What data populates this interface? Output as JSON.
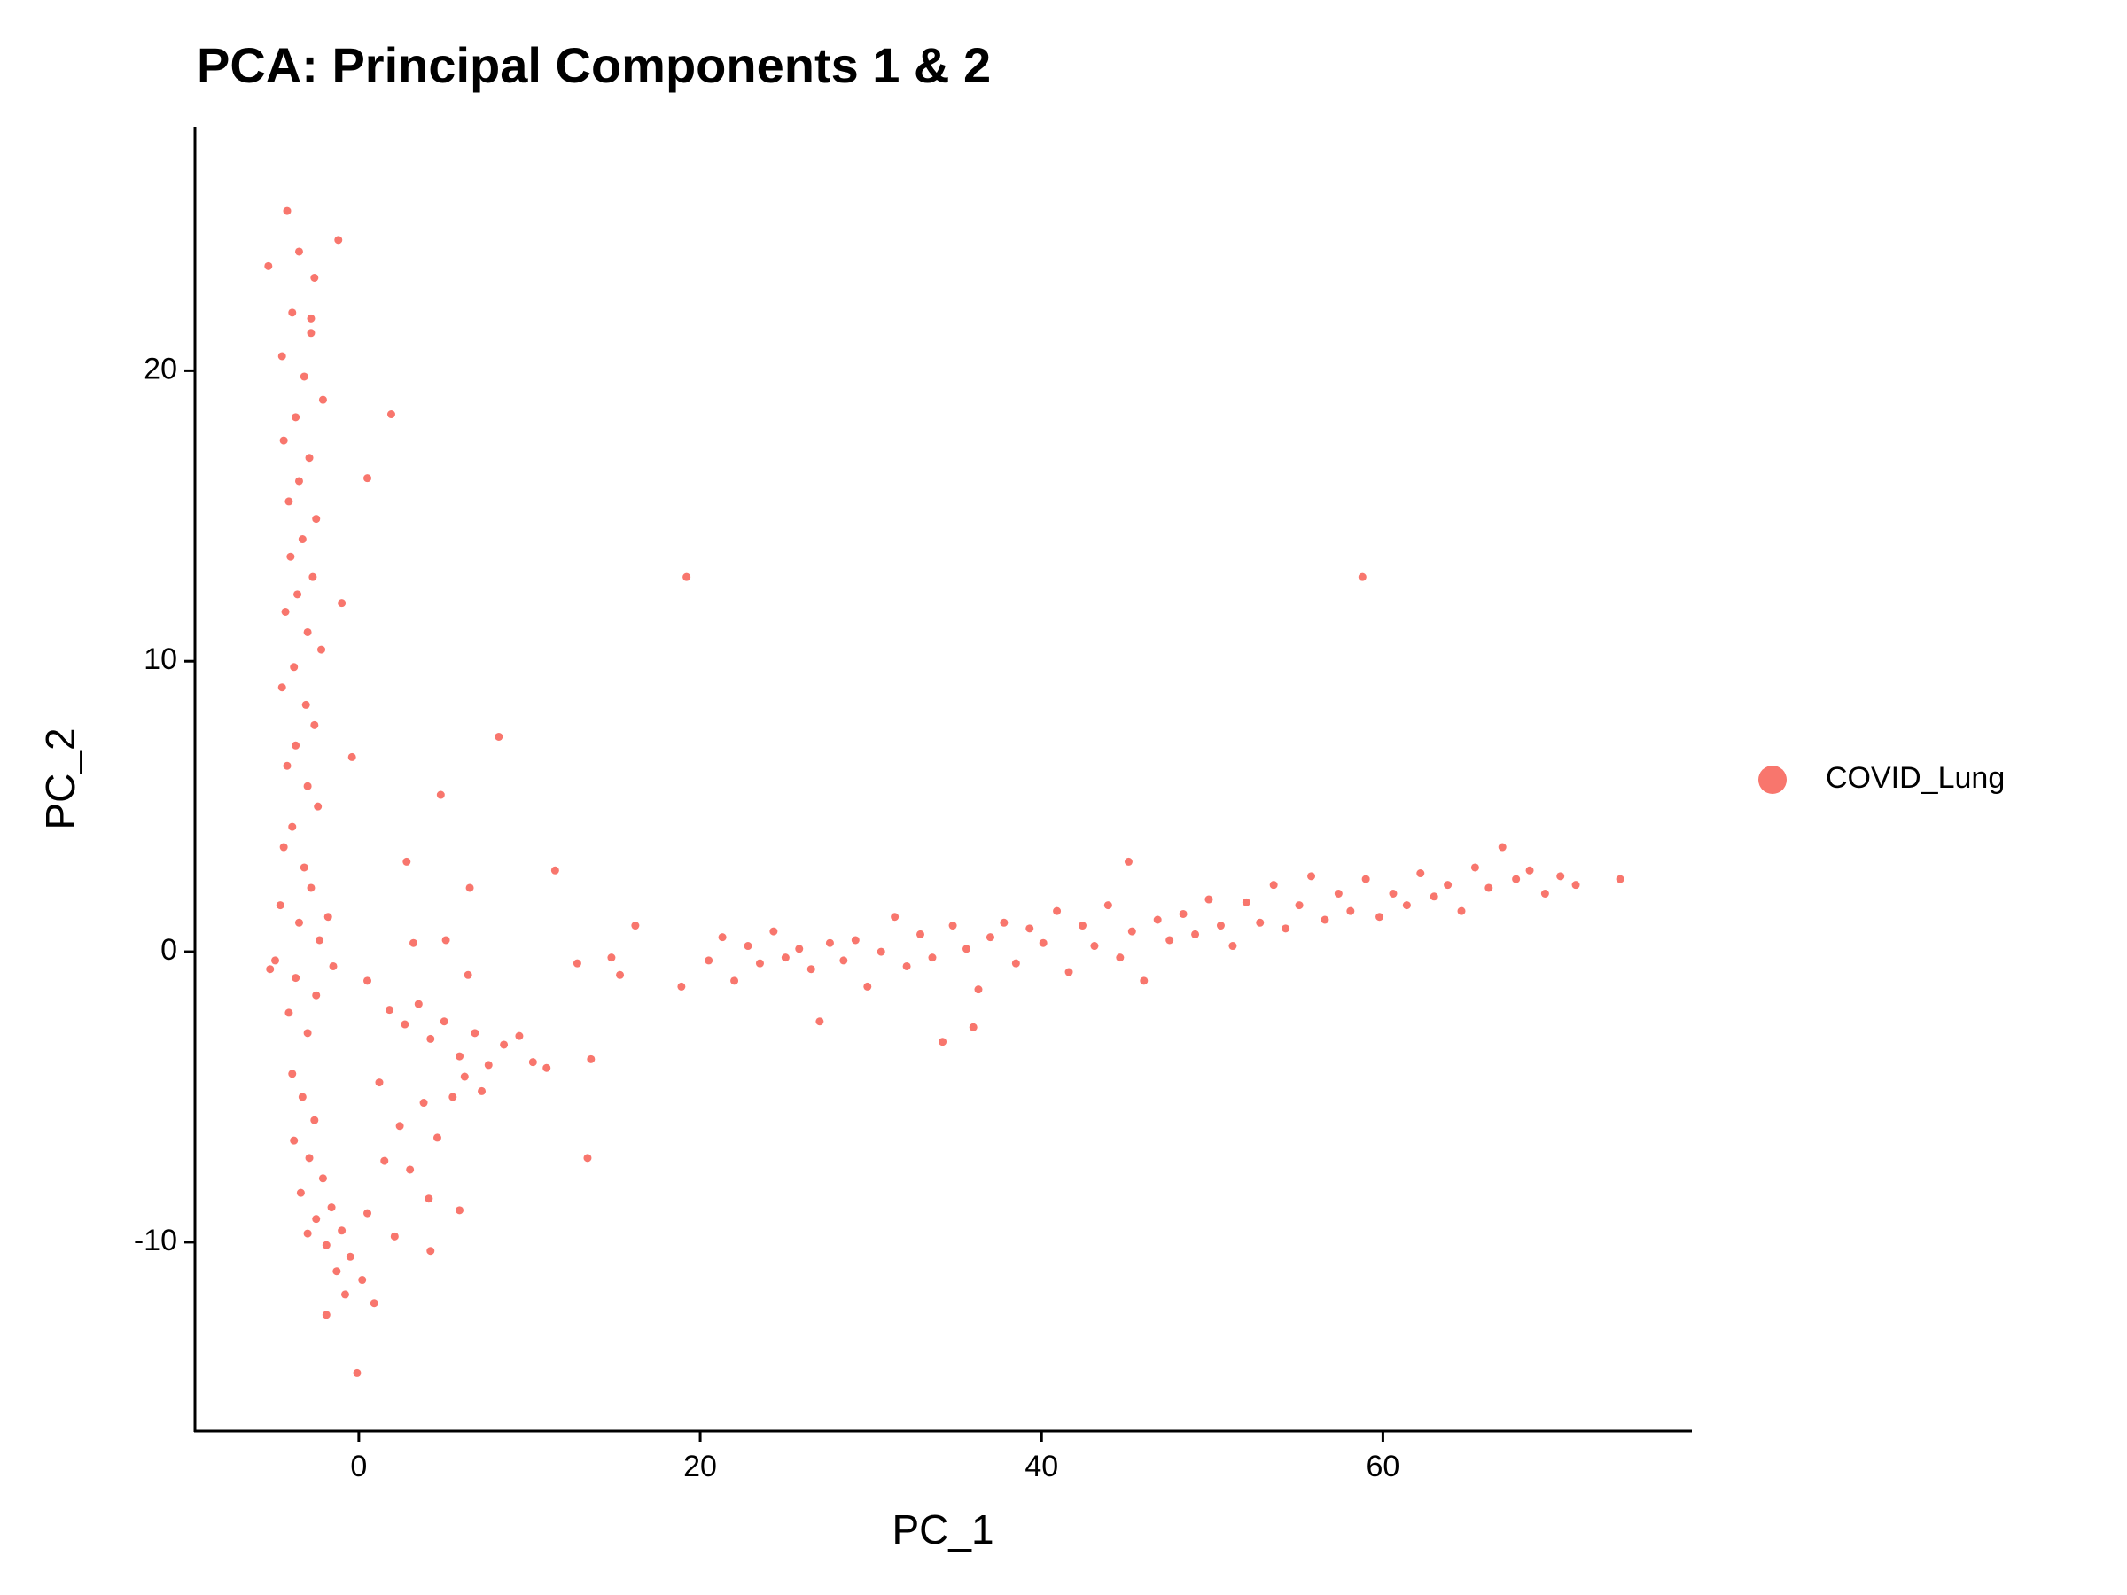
{
  "chart_data": {
    "type": "scatter",
    "title": "PCA: Principal Components 1 & 2",
    "x_label": "PC_1",
    "y_label": "PC_2",
    "xlim": [
      -9.6,
      78.1
    ],
    "ylim": [
      -16.5,
      28.4
    ],
    "xticks": [
      0,
      20,
      40,
      60
    ],
    "yticks": [
      -10,
      0,
      10,
      20
    ],
    "grid": false,
    "legend": "right",
    "series": [
      {
        "name": "COVID_Lung",
        "color": "#F8766D",
        "x": [
          -4.2,
          -3.5,
          -2.6,
          -3.9,
          -2.8,
          -4.5,
          -3.2,
          -2.1,
          -3.7,
          -4.4,
          -2.9,
          -3.5,
          -4.1,
          -2.5,
          -3.3,
          -4.0,
          -2.7,
          -3.6,
          -4.3,
          -3.0,
          -2.2,
          -3.8,
          -4.5,
          -3.1,
          -2.6,
          -3.7,
          -4.2,
          -3.0,
          -2.4,
          -3.9,
          -4.4,
          -3.2,
          -2.8,
          -4.6,
          -3.5,
          -2.3,
          -4.9,
          -3.7,
          -2.5,
          -4.1,
          -3.0,
          -1.5,
          -5.2,
          -1.8,
          -3.9,
          -3.3,
          -2.6,
          -3.8,
          -2.9,
          -2.1,
          -3.4,
          -1.6,
          -2.5,
          -1.0,
          -1.9,
          -0.5,
          -1.3,
          0.2,
          -0.8,
          0.9,
          -1.9,
          -0.1,
          -3.0,
          0.5,
          -2.8,
          -1.2,
          -5.3,
          1.9,
          0.5,
          -1.0,
          -0.4,
          8.2,
          4.8,
          6.5,
          2.8,
          11.5,
          0.5,
          1.8,
          2.7,
          3.5,
          4.2,
          5.0,
          5.9,
          6.8,
          7.6,
          8.5,
          9.4,
          10.2,
          11.0,
          1.2,
          2.4,
          3.8,
          4.6,
          5.5,
          6.2,
          7.2,
          3.0,
          4.1,
          5.9,
          4.2,
          2.1,
          1.5,
          3.2,
          5.1,
          6.4,
          13.6,
          13.4,
          12.8,
          14.8,
          15.3,
          16.2,
          18.9,
          19.2,
          20.5,
          21.3,
          22.0,
          22.8,
          23.5,
          24.3,
          25.0,
          25.8,
          26.5,
          27.0,
          27.6,
          28.4,
          29.1,
          29.8,
          30.6,
          31.4,
          32.1,
          32.9,
          33.6,
          34.2,
          34.8,
          35.6,
          36.3,
          36.0,
          37.0,
          37.8,
          38.5,
          39.3,
          40.1,
          40.9,
          41.6,
          42.4,
          43.1,
          43.9,
          44.6,
          45.3,
          45.1,
          46.0,
          46.8,
          47.5,
          48.3,
          49.0,
          49.8,
          50.5,
          51.2,
          52.0,
          52.8,
          53.6,
          54.3,
          55.1,
          55.8,
          56.6,
          57.4,
          58.1,
          58.8,
          59.0,
          59.8,
          60.6,
          61.4,
          62.2,
          63.0,
          63.8,
          64.6,
          65.4,
          66.2,
          67.0,
          67.8,
          68.6,
          69.5,
          70.4,
          71.3,
          73.9
        ],
        "values": [
          25.5,
          24.1,
          23.2,
          22.0,
          21.3,
          20.5,
          19.8,
          19.0,
          18.4,
          17.6,
          17.0,
          16.2,
          15.5,
          14.9,
          14.2,
          13.6,
          12.9,
          12.3,
          11.7,
          11.0,
          10.4,
          9.8,
          9.1,
          8.5,
          7.8,
          7.1,
          6.4,
          5.7,
          5.0,
          4.3,
          3.6,
          2.9,
          2.2,
          1.6,
          1.0,
          0.4,
          -0.3,
          -0.9,
          -1.5,
          -2.1,
          -2.8,
          -0.5,
          -0.6,
          1.2,
          -4.2,
          -5.0,
          -5.8,
          -6.5,
          -7.1,
          -7.8,
          -8.3,
          -8.8,
          -9.2,
          -9.6,
          -10.1,
          -10.5,
          -11.0,
          -11.3,
          -11.8,
          -12.1,
          -12.5,
          -14.5,
          -9.7,
          -9.0,
          21.8,
          24.5,
          23.6,
          18.5,
          16.3,
          12.0,
          6.7,
          7.4,
          5.4,
          2.2,
          3.1,
          2.8,
          -1.0,
          -2.0,
          -2.5,
          -1.8,
          -3.0,
          -2.4,
          -3.6,
          -2.8,
          -3.9,
          -3.2,
          -2.9,
          -3.8,
          -4.0,
          -4.5,
          -6.0,
          -5.2,
          -6.4,
          -5.0,
          -4.3,
          -4.8,
          -7.5,
          -8.5,
          -8.9,
          -10.3,
          -9.8,
          -7.2,
          0.3,
          0.4,
          -0.8,
          -3.7,
          -7.1,
          -0.4,
          -0.2,
          -0.8,
          0.9,
          -1.2,
          12.9,
          -0.3,
          0.5,
          -1.0,
          0.2,
          -0.4,
          0.7,
          -0.2,
          0.1,
          -0.6,
          -2.4,
          0.3,
          -0.3,
          0.4,
          -1.2,
          0.0,
          1.2,
          -0.5,
          0.6,
          -0.2,
          -3.1,
          0.9,
          0.1,
          -1.3,
          -2.6,
          0.5,
          1.0,
          -0.4,
          0.8,
          0.3,
          1.4,
          -0.7,
          0.9,
          0.2,
          1.6,
          -0.2,
          0.7,
          3.1,
          -1.0,
          1.1,
          0.4,
          1.3,
          0.6,
          1.8,
          0.9,
          0.2,
          1.7,
          1.0,
          2.3,
          0.8,
          1.6,
          2.6,
          1.1,
          2.0,
          1.4,
          12.9,
          2.5,
          1.2,
          2.0,
          1.6,
          2.7,
          1.9,
          2.3,
          1.4,
          2.9,
          2.2,
          3.6,
          2.5,
          2.8,
          2.0,
          2.6,
          2.3,
          2.5
        ]
      }
    ]
  }
}
